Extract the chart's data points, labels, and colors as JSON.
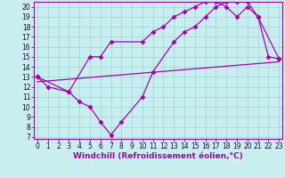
{
  "xlabel": "Windchill (Refroidissement éolien,°C)",
  "bg_color": "#c8eef0",
  "line_color": "#aa00aa",
  "xlim": [
    -0.3,
    23.3
  ],
  "ylim": [
    6.8,
    20.5
  ],
  "xticks": [
    0,
    1,
    2,
    3,
    4,
    5,
    6,
    7,
    8,
    9,
    10,
    11,
    12,
    13,
    14,
    15,
    16,
    17,
    18,
    19,
    20,
    21,
    22,
    23
  ],
  "yticks": [
    7,
    8,
    9,
    10,
    11,
    12,
    13,
    14,
    15,
    16,
    17,
    18,
    19,
    20
  ],
  "curve1_x": [
    0,
    1,
    3,
    4,
    5,
    6,
    7,
    8,
    10,
    11,
    13,
    14,
    15,
    16,
    17,
    18,
    19,
    20,
    21,
    22,
    23
  ],
  "curve1_y": [
    13,
    12,
    11.5,
    10.5,
    10.0,
    8.5,
    7.2,
    8.5,
    11.0,
    13.5,
    16.5,
    17.5,
    18.0,
    19.0,
    20.0,
    20.5,
    20.5,
    20.5,
    19.0,
    15.0,
    14.8
  ],
  "curve2_x": [
    0,
    3,
    5,
    6,
    7,
    10,
    11,
    12,
    13,
    14,
    15,
    16,
    17,
    18,
    19,
    20,
    21,
    23
  ],
  "curve2_y": [
    13,
    11.5,
    15.0,
    15.0,
    16.5,
    16.5,
    17.5,
    18.0,
    19.0,
    19.5,
    20.0,
    20.5,
    20.5,
    20.0,
    19.0,
    20.0,
    19.0,
    14.8
  ],
  "line_x": [
    0,
    23
  ],
  "line_y": [
    12.5,
    14.5
  ],
  "grid_color": "#8ecece",
  "tick_fontsize": 5.5,
  "xlabel_fontsize": 6.5
}
